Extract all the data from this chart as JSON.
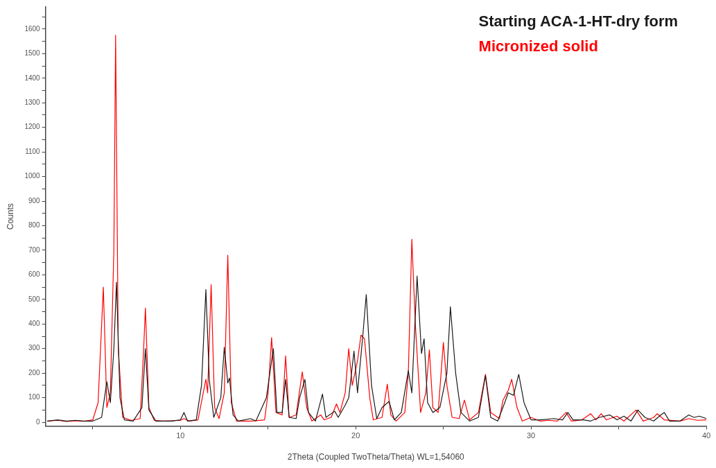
{
  "chart_data": {
    "type": "line",
    "xlabel": "2Theta (Coupled TwoTheta/Theta) WL=1,54060",
    "ylabel": "Counts",
    "xlim": [
      2.3,
      40
    ],
    "ylim": [
      -15,
      1690
    ],
    "xticks": [
      {
        "value": 5,
        "label": null
      },
      10,
      {
        "value": 15,
        "label": null
      },
      20,
      {
        "value": 25,
        "label": null
      },
      30,
      {
        "value": 35,
        "label": null
      },
      40
    ],
    "yticks": [
      0,
      {
        "value": 50,
        "label": null
      },
      100,
      {
        "value": 150,
        "label": null
      },
      200,
      {
        "value": 250,
        "label": null
      },
      300,
      {
        "value": 350,
        "label": null
      },
      400,
      {
        "value": 450,
        "label": null
      },
      500,
      {
        "value": 550,
        "label": null
      },
      600,
      {
        "value": 650,
        "label": null
      },
      700,
      {
        "value": 750,
        "label": null
      },
      800,
      {
        "value": 850,
        "label": null
      },
      900,
      {
        "value": 950,
        "label": null
      },
      1000,
      {
        "value": 1050,
        "label": null
      },
      1100,
      {
        "value": 1150,
        "label": null
      },
      1200,
      {
        "value": 1250,
        "label": null
      },
      1300,
      {
        "value": 1350,
        "label": null
      },
      1400,
      {
        "value": 1450,
        "label": null
      },
      1500,
      {
        "value": 1550,
        "label": null
      },
      1600,
      {
        "value": 1650,
        "label": null
      }
    ],
    "grid": false,
    "legend": "top right",
    "marker": "none",
    "line_style": "solid",
    "series": [
      {
        "name": "Starting ACA-1-HT-dry form",
        "color": "#1a1a1a",
        "x": [
          2.4,
          3,
          3.5,
          4,
          4.5,
          5.0,
          5.5,
          5.8,
          6.0,
          6.2,
          6.35,
          6.55,
          6.8,
          7.3,
          7.8,
          8.0,
          8.2,
          8.6,
          9,
          9.5,
          10.0,
          10.2,
          10.4,
          10.9,
          11.2,
          11.45,
          11.65,
          11.9,
          12.3,
          12.5,
          12.7,
          12.8,
          13.0,
          13.3,
          14.0,
          14.3,
          14.9,
          15.3,
          15.5,
          15.8,
          16.0,
          16.2,
          16.6,
          16.8,
          17.1,
          17.3,
          17.7,
          18.1,
          18.3,
          18.8,
          19.0,
          19.4,
          19.6,
          19.9,
          20.1,
          20.4,
          20.6,
          20.9,
          21.2,
          21.5,
          21.9,
          22.2,
          22.6,
          23.0,
          23.2,
          23.5,
          23.75,
          23.9,
          24.1,
          24.4,
          24.8,
          25.2,
          25.4,
          25.7,
          26.0,
          26.5,
          27.0,
          27.4,
          27.7,
          28.1,
          28.5,
          28.7,
          29.0,
          29.3,
          29.6,
          30.0,
          30.5,
          31.3,
          31.8,
          32.1,
          32.4,
          33.0,
          33.4,
          33.9,
          34.5,
          34.9,
          35.3,
          35.7,
          36.1,
          36.5,
          37.0,
          37.4,
          37.6,
          37.9,
          38.5,
          39.0,
          39.3,
          39.6,
          40.0
        ],
        "values": [
          5,
          10,
          5,
          8,
          5,
          5,
          20,
          165,
          80,
          300,
          570,
          100,
          10,
          5,
          60,
          300,
          50,
          5,
          5,
          5,
          10,
          40,
          5,
          10,
          150,
          540,
          170,
          20,
          100,
          305,
          160,
          180,
          30,
          5,
          15,
          5,
          100,
          300,
          40,
          40,
          175,
          20,
          15,
          100,
          175,
          40,
          5,
          115,
          20,
          45,
          20,
          70,
          100,
          290,
          120,
          350,
          520,
          150,
          15,
          60,
          85,
          10,
          40,
          210,
          120,
          595,
          280,
          340,
          80,
          40,
          60,
          200,
          470,
          200,
          40,
          5,
          20,
          190,
          20,
          5,
          80,
          120,
          110,
          195,
          80,
          10,
          10,
          15,
          10,
          40,
          10,
          10,
          5,
          20,
          30,
          10,
          25,
          5,
          50,
          20,
          5,
          30,
          40,
          5,
          5,
          30,
          20,
          25,
          15
        ]
      },
      {
        "name": "Micronized solid",
        "color": "#ff0000",
        "x": [
          2.4,
          3,
          3.5,
          4,
          4.5,
          5.0,
          5.3,
          5.6,
          5.8,
          6.0,
          6.2,
          6.3,
          6.45,
          6.7,
          7.2,
          7.7,
          7.9,
          8.0,
          8.2,
          8.5,
          9,
          9.5,
          10,
          10.2,
          10.5,
          11.0,
          11.3,
          11.45,
          11.55,
          11.75,
          11.95,
          12.2,
          12.5,
          12.7,
          12.9,
          13.2,
          14,
          14.8,
          15.0,
          15.2,
          15.45,
          15.8,
          16.0,
          16.2,
          16.6,
          16.95,
          17.2,
          17.5,
          18.0,
          18.2,
          18.6,
          18.9,
          19.1,
          19.4,
          19.6,
          19.8,
          20.1,
          20.3,
          20.5,
          20.8,
          21.0,
          21.5,
          21.8,
          22.0,
          22.3,
          22.8,
          23.0,
          23.2,
          23.4,
          23.7,
          24.0,
          24.2,
          24.4,
          24.7,
          25.0,
          25.2,
          25.5,
          25.9,
          26.2,
          26.5,
          27.0,
          27.4,
          27.7,
          28.2,
          28.4,
          28.7,
          28.9,
          29.2,
          29.5,
          30,
          30.5,
          31,
          31.5,
          32.0,
          32.3,
          32.9,
          33.4,
          33.7,
          34.0,
          34.3,
          34.9,
          35.3,
          36.0,
          36.4,
          37.0,
          37.2,
          37.6,
          38.5,
          39,
          39.5,
          40.0
        ],
        "values": [
          5,
          8,
          3,
          6,
          4,
          10,
          80,
          550,
          60,
          120,
          700,
          1575,
          300,
          20,
          8,
          15,
          300,
          465,
          60,
          8,
          5,
          6,
          8,
          15,
          5,
          10,
          120,
          175,
          120,
          560,
          60,
          15,
          120,
          680,
          80,
          5,
          5,
          10,
          120,
          345,
          40,
          30,
          270,
          20,
          30,
          205,
          60,
          5,
          30,
          10,
          20,
          75,
          40,
          120,
          300,
          150,
          250,
          355,
          340,
          100,
          10,
          20,
          155,
          30,
          5,
          40,
          200,
          745,
          400,
          40,
          120,
          295,
          60,
          40,
          325,
          150,
          20,
          15,
          90,
          10,
          40,
          195,
          40,
          15,
          90,
          130,
          175,
          60,
          5,
          20,
          5,
          8,
          5,
          40,
          5,
          10,
          35,
          10,
          35,
          10,
          25,
          5,
          50,
          5,
          20,
          35,
          10,
          5,
          15,
          8,
          10
        ]
      }
    ]
  }
}
